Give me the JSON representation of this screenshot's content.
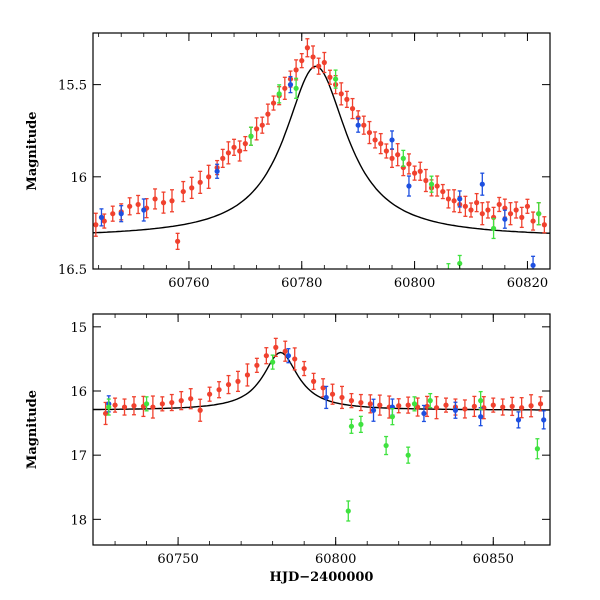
{
  "colors": {
    "red": "#f0412e",
    "blue": "#1d4fe0",
    "green": "#3fe23f",
    "model": "#000000",
    "frame": "#000000"
  },
  "chart_data": [
    {
      "type": "scatter",
      "title": "",
      "xlabel": "",
      "ylabel": "Magnitude",
      "xlim": [
        60743,
        60824
      ],
      "ylim": [
        16.5,
        15.22
      ],
      "y_inverted": true,
      "xticks": [
        60760,
        60780,
        60800,
        60820
      ],
      "xtick_labels": [
        "60760",
        "60780",
        "60800",
        "60820"
      ],
      "yticks": [
        15.5,
        16,
        16.5
      ],
      "ytick_labels": [
        "15.5",
        "16",
        "16.5"
      ],
      "model_curve": {
        "peak_x": 60782.5,
        "peak_mag": 15.4,
        "base_mag": 16.33,
        "width_days": 13.5
      },
      "series": [
        {
          "color": "red",
          "points": [
            [
              60743.5,
              16.26
            ],
            [
              60745,
              16.24
            ],
            [
              60746.5,
              16.2
            ],
            [
              60748,
              16.19
            ],
            [
              60749.5,
              16.16
            ],
            [
              60751,
              16.15
            ],
            [
              60752.5,
              16.17
            ],
            [
              60754,
              16.12
            ],
            [
              60755.5,
              16.14
            ],
            [
              60757,
              16.13
            ],
            [
              60758,
              16.35
            ],
            [
              60759,
              16.08
            ],
            [
              60760.5,
              16.06
            ],
            [
              60762,
              16.03
            ],
            [
              60763.5,
              16.0
            ],
            [
              60765,
              15.95
            ],
            [
              60766,
              15.9
            ],
            [
              60767,
              15.87
            ],
            [
              60768,
              15.84
            ],
            [
              60769,
              15.86
            ],
            [
              60770,
              15.82
            ],
            [
              60771,
              15.78
            ],
            [
              60772,
              15.74
            ],
            [
              60773,
              15.72
            ],
            [
              60774,
              15.66
            ],
            [
              60775,
              15.6
            ],
            [
              60776,
              15.56
            ],
            [
              60777,
              15.52
            ],
            [
              60778,
              15.47
            ],
            [
              60779,
              15.42
            ],
            [
              60780,
              15.37
            ],
            [
              60781,
              15.3
            ],
            [
              60782,
              15.35
            ],
            [
              60783,
              15.4
            ],
            [
              60784,
              15.38
            ],
            [
              60785,
              15.46
            ],
            [
              60786,
              15.5
            ],
            [
              60787,
              15.55
            ],
            [
              60788,
              15.58
            ],
            [
              60789,
              15.63
            ],
            [
              60790,
              15.68
            ],
            [
              60791,
              15.72
            ],
            [
              60792,
              15.76
            ],
            [
              60793,
              15.8
            ],
            [
              60794,
              15.82
            ],
            [
              60795,
              15.86
            ],
            [
              60796,
              15.9
            ],
            [
              60797,
              15.88
            ],
            [
              60798,
              15.95
            ],
            [
              60799,
              15.93
            ],
            [
              60800,
              15.98
            ],
            [
              60801,
              15.97
            ],
            [
              60802,
              16.02
            ],
            [
              60803,
              16.06
            ],
            [
              60804,
              16.05
            ],
            [
              60805,
              16.08
            ],
            [
              60806,
              16.12
            ],
            [
              60807,
              16.13
            ],
            [
              60808,
              16.15
            ],
            [
              60809,
              16.16
            ],
            [
              60810,
              16.18
            ],
            [
              60811,
              16.14
            ],
            [
              60812,
              16.2
            ],
            [
              60813,
              16.18
            ],
            [
              60814,
              16.22
            ],
            [
              60815,
              16.15
            ],
            [
              60816,
              16.17
            ],
            [
              60817,
              16.2
            ],
            [
              60818,
              16.18
            ],
            [
              60819,
              16.22
            ],
            [
              60820,
              16.16
            ],
            [
              60821,
              16.24
            ],
            [
              60822,
              16.2
            ],
            [
              60823,
              16.26
            ]
          ]
        },
        {
          "color": "blue",
          "points": [
            [
              60744.5,
              16.22
            ],
            [
              60748,
              16.2
            ],
            [
              60752,
              16.18
            ],
            [
              60765,
              15.97
            ],
            [
              60778,
              15.5
            ],
            [
              60790,
              15.72
            ],
            [
              60796,
              15.8
            ],
            [
              60799,
              16.05
            ],
            [
              60808,
              16.12
            ],
            [
              60812,
              16.04
            ],
            [
              60816,
              16.23
            ],
            [
              60821,
              16.48
            ]
          ]
        },
        {
          "color": "green",
          "points": [
            [
              60771,
              15.78
            ],
            [
              60776,
              15.55
            ],
            [
              60779,
              15.52
            ],
            [
              60786,
              15.47
            ],
            [
              60798,
              15.9
            ],
            [
              60803,
              16.04
            ],
            [
              60806,
              16.52
            ],
            [
              60808,
              16.47
            ],
            [
              60814,
              16.28
            ],
            [
              60822,
              16.2
            ]
          ]
        }
      ]
    },
    {
      "type": "scatter",
      "title": "",
      "xlabel": "HJD−2400000",
      "ylabel": "Magnitude",
      "xlim": [
        60723,
        60868
      ],
      "ylim": [
        18.4,
        14.8
      ],
      "y_inverted": true,
      "xticks": [
        60750,
        60800,
        60850
      ],
      "xtick_labels": [
        "60750",
        "60800",
        "60850"
      ],
      "yticks": [
        15,
        16,
        17,
        18
      ],
      "ytick_labels": [
        "15",
        "16",
        "17",
        "18"
      ],
      "model_curve": {
        "peak_x": 60782.5,
        "peak_mag": 15.4,
        "base_mag": 16.3,
        "width_days": 13.5
      },
      "series": [
        {
          "color": "red",
          "points": [
            [
              60727,
              16.35
            ],
            [
              60730,
              16.22
            ],
            [
              60733,
              16.25
            ],
            [
              60736,
              16.23
            ],
            [
              60739,
              16.24
            ],
            [
              60742,
              16.25
            ],
            [
              60745,
              16.2
            ],
            [
              60748,
              16.18
            ],
            [
              60751,
              16.15
            ],
            [
              60754,
              16.12
            ],
            [
              60757,
              16.3
            ],
            [
              60760,
              16.05
            ],
            [
              60763,
              15.98
            ],
            [
              60766,
              15.9
            ],
            [
              60769,
              15.85
            ],
            [
              60772,
              15.75
            ],
            [
              60775,
              15.6
            ],
            [
              60778,
              15.45
            ],
            [
              60781,
              15.32
            ],
            [
              60784,
              15.38
            ],
            [
              60787,
              15.5
            ],
            [
              60790,
              15.65
            ],
            [
              60793,
              15.85
            ],
            [
              60796,
              15.95
            ],
            [
              60799,
              16.05
            ],
            [
              60802,
              16.1
            ],
            [
              60805,
              16.15
            ],
            [
              60808,
              16.18
            ],
            [
              60811,
              16.2
            ],
            [
              60814,
              16.22
            ],
            [
              60817,
              16.25
            ],
            [
              60820,
              16.23
            ],
            [
              60823,
              16.22
            ],
            [
              60826,
              16.25
            ],
            [
              60829,
              16.24
            ],
            [
              60832,
              16.26
            ],
            [
              60835,
              16.22
            ],
            [
              60838,
              16.25
            ],
            [
              60841,
              16.28
            ],
            [
              60844,
              16.24
            ],
            [
              60847,
              16.26
            ],
            [
              60850,
              16.22
            ],
            [
              60853,
              16.25
            ],
            [
              60856,
              16.24
            ],
            [
              60859,
              16.26
            ],
            [
              60862,
              16.23
            ],
            [
              60865,
              16.2
            ]
          ]
        },
        {
          "color": "blue",
          "points": [
            [
              60728,
              16.2
            ],
            [
              60785,
              15.45
            ],
            [
              60797,
              16.1
            ],
            [
              60812,
              16.3
            ],
            [
              60818,
              16.25
            ],
            [
              60828,
              16.35
            ],
            [
              60838,
              16.3
            ],
            [
              60846,
              16.4
            ],
            [
              60858,
              16.45
            ],
            [
              60866,
              16.45
            ]
          ]
        },
        {
          "color": "green",
          "points": [
            [
              60728,
              16.25
            ],
            [
              60740,
              16.2
            ],
            [
              60780,
              15.55
            ],
            [
              60805,
              16.55
            ],
            [
              60808,
              16.52
            ],
            [
              60816,
              16.85
            ],
            [
              60818,
              16.4
            ],
            [
              60823,
              17.0
            ],
            [
              60825,
              16.2
            ],
            [
              60830,
              16.15
            ],
            [
              60846,
              16.15
            ],
            [
              60864,
              16.9
            ],
            [
              60804,
              17.87
            ]
          ]
        }
      ]
    }
  ]
}
